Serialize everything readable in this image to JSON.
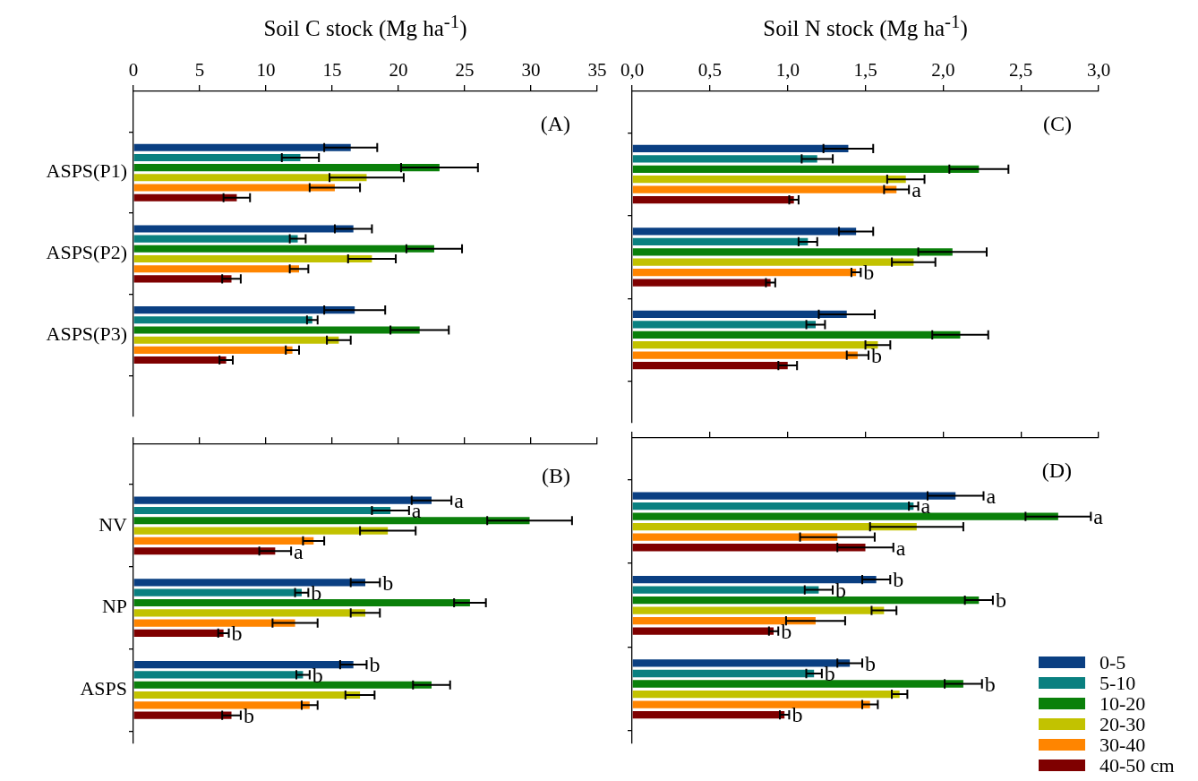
{
  "chart_data": [
    {
      "type": "bar",
      "orientation": "horizontal",
      "xlabel": "Soil C stock (Mg ha$^{-1}$)",
      "categories": [
        "ASPS(P1)",
        "ASPS(P2)",
        "ASPS(P3)"
      ],
      "xlim": [
        0,
        35
      ],
      "xticks": [
        0,
        5,
        10,
        15,
        20,
        25,
        30,
        35
      ],
      "annotations": [
        "(A)"
      ],
      "series": [
        {
          "color": "#0a3f82",
          "values": [
            16.4,
            16.6,
            16.7
          ],
          "errors": [
            2.0,
            1.4,
            2.3
          ]
        },
        {
          "color": "#0a8080",
          "values": [
            12.6,
            12.4,
            13.5
          ],
          "errors": [
            1.4,
            0.6,
            0.4
          ]
        },
        {
          "color": "#0a800a",
          "values": [
            23.1,
            22.7,
            21.6
          ],
          "errors": [
            2.9,
            2.1,
            2.2
          ]
        },
        {
          "color": "#c2c200",
          "values": [
            17.6,
            18.0,
            15.5
          ],
          "errors": [
            2.8,
            1.8,
            0.9
          ]
        },
        {
          "color": "#ff8500",
          "values": [
            15.2,
            12.5,
            12.0
          ],
          "errors": [
            1.9,
            0.7,
            0.5
          ]
        },
        {
          "color": "#7f0000",
          "values": [
            7.8,
            7.4,
            7.0
          ],
          "errors": [
            1.0,
            0.7,
            0.5
          ]
        }
      ]
    },
    {
      "type": "bar",
      "orientation": "horizontal",
      "categories": [
        "NV",
        "NP",
        "ASPS"
      ],
      "xlim": [
        0,
        35
      ],
      "xticks": [
        {
          "value": 0,
          "label": null
        },
        {
          "value": 5,
          "label": null
        },
        {
          "value": 10,
          "label": null
        },
        {
          "value": 15,
          "label": null
        },
        {
          "value": 20,
          "label": null
        },
        {
          "value": 25,
          "label": null
        },
        {
          "value": 30,
          "label": null
        },
        {
          "value": 35,
          "label": null
        }
      ],
      "tick_labels": "y",
      "annotations": [
        "(B)"
      ],
      "series": [
        {
          "color": "#0a3f82",
          "values": [
            22.5,
            17.5,
            16.6
          ],
          "errors": [
            1.5,
            1.1,
            1.0
          ],
          "value_labels": [
            "a",
            "b",
            "b"
          ]
        },
        {
          "color": "#0a8080",
          "values": [
            19.4,
            12.7,
            12.8
          ],
          "errors": [
            1.4,
            0.5,
            0.5
          ],
          "value_labels": [
            "a",
            "b",
            "b"
          ]
        },
        {
          "color": "#0a800a",
          "values": [
            29.9,
            25.4,
            22.5
          ],
          "errors": [
            3.2,
            1.2,
            1.4
          ]
        },
        {
          "color": "#c2c200",
          "values": [
            19.2,
            17.5,
            17.1
          ],
          "errors": [
            2.1,
            1.1,
            1.1
          ]
        },
        {
          "color": "#ff8500",
          "values": [
            13.6,
            12.2,
            13.3
          ],
          "errors": [
            0.8,
            1.7,
            0.6
          ]
        },
        {
          "color": "#7f0000",
          "values": [
            10.7,
            6.8,
            7.4
          ],
          "errors": [
            1.2,
            0.4,
            0.7
          ],
          "value_labels": [
            "a",
            "b",
            "b"
          ]
        }
      ]
    },
    {
      "type": "bar",
      "orientation": "horizontal",
      "xlabel": "Soil N stock (Mg ha$^{-1}$)",
      "categories": [
        null,
        null,
        null
      ],
      "xlim": [
        0,
        3
      ],
      "xticks": [
        {
          "value": 0,
          "label": "0,0"
        },
        {
          "value": 0.5,
          "label": "0,5"
        },
        {
          "value": 1,
          "label": "1,0"
        },
        {
          "value": 1.5,
          "label": "1,5"
        },
        {
          "value": 2,
          "label": "2,0"
        },
        {
          "value": 2.5,
          "label": "2,5"
        },
        {
          "value": 3,
          "label": "3,0"
        }
      ],
      "tick_labels": "x",
      "annotations": [
        "(C)"
      ],
      "series": [
        {
          "color": "#0a3f82",
          "values": [
            1.39,
            1.44,
            1.38
          ],
          "errors": [
            0.16,
            0.11,
            0.18
          ]
        },
        {
          "color": "#0a8080",
          "values": [
            1.19,
            1.13,
            1.18
          ],
          "errors": [
            0.1,
            0.06,
            0.06
          ]
        },
        {
          "color": "#0a800a",
          "values": [
            2.23,
            2.06,
            2.11
          ],
          "errors": [
            0.19,
            0.22,
            0.18
          ]
        },
        {
          "color": "#c2c200",
          "values": [
            1.76,
            1.81,
            1.58
          ],
          "errors": [
            0.12,
            0.14,
            0.08
          ]
        },
        {
          "color": "#ff8500",
          "values": [
            1.7,
            1.44,
            1.45
          ],
          "errors": [
            0.08,
            0.03,
            0.07
          ],
          "value_labels": [
            "a",
            "b",
            "b"
          ]
        },
        {
          "color": "#7f0000",
          "values": [
            1.04,
            0.89,
            1.0
          ],
          "errors": [
            0.03,
            0.03,
            0.06
          ]
        }
      ]
    },
    {
      "type": "bar",
      "orientation": "horizontal",
      "categories": [
        null,
        null,
        null
      ],
      "xlim": [
        0,
        3
      ],
      "xticks": [
        {
          "value": 0,
          "label": null
        },
        {
          "value": 0.5,
          "label": null
        },
        {
          "value": 1,
          "label": null
        },
        {
          "value": 1.5,
          "label": null
        },
        {
          "value": 2,
          "label": null
        },
        {
          "value": 2.5,
          "label": null
        },
        {
          "value": 3,
          "label": null
        }
      ],
      "tick_labels": false,
      "legend": "bottom right",
      "annotations": [
        "(D)"
      ],
      "series": [
        {
          "name": "0-5",
          "color": "#0a3f82",
          "values": [
            2.08,
            1.57,
            1.4
          ],
          "errors": [
            0.18,
            0.09,
            0.08
          ],
          "value_labels": [
            "a",
            "b",
            "b"
          ]
        },
        {
          "name": "5-10",
          "color": "#0a8080",
          "values": [
            1.81,
            1.2,
            1.17
          ],
          "errors": [
            0.03,
            0.09,
            0.05
          ],
          "value_labels": [
            "a",
            "b",
            "b"
          ]
        },
        {
          "name": "10-20",
          "color": "#0a800a",
          "values": [
            2.74,
            2.23,
            2.13
          ],
          "errors": [
            0.21,
            0.09,
            0.12
          ],
          "value_labels": [
            "a",
            "b",
            "b"
          ]
        },
        {
          "name": "20-30",
          "color": "#c2c200",
          "values": [
            1.83,
            1.62,
            1.72
          ],
          "errors": [
            0.3,
            0.08,
            0.05
          ]
        },
        {
          "name": "30-40",
          "color": "#ff8500",
          "values": [
            1.32,
            1.18,
            1.53
          ],
          "errors": [
            0.24,
            0.19,
            0.05
          ]
        },
        {
          "name": "40-50 cm",
          "color": "#7f0000",
          "values": [
            1.5,
            0.91,
            0.98
          ],
          "errors": [
            0.18,
            0.03,
            0.03
          ],
          "value_labels": [
            "a",
            "b",
            "b"
          ]
        }
      ]
    }
  ]
}
